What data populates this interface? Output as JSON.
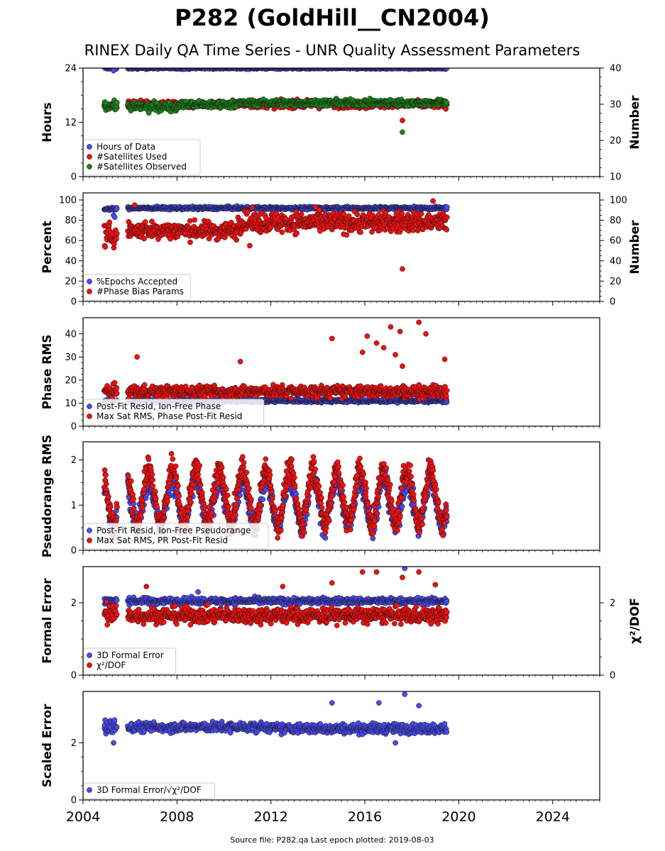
{
  "title": "P282 (GoldHill__CN2004)",
  "subtitle": "RINEX Daily QA Time Series - UNR Quality Assessment Parameters",
  "source_note": "Source file: P282.qa Last epoch plotted: 2019-08-03",
  "colors": {
    "blue": "#4b4bf0",
    "red": "#ee1111",
    "green": "#1a8a1a",
    "edge": "#111111"
  },
  "x_axis": {
    "xlim": [
      2004.0,
      2026.0
    ],
    "ticks": [
      2004,
      2008,
      2012,
      2016,
      2020,
      2024
    ]
  },
  "chart_data": [
    {
      "type": "scatter",
      "ylabel": "Hours",
      "ylabel_right": "Number",
      "ylim": [
        0,
        24
      ],
      "yticks": [
        0,
        12,
        24
      ],
      "ylim_right": [
        10,
        40
      ],
      "yticks_right": [
        10,
        20,
        30,
        40
      ],
      "legend_position": "lower-left",
      "series": [
        {
          "name": "Hours of Data",
          "color": "blue",
          "axis": "left",
          "segments": [
            [
              2004.9,
              2005.45,
              24,
              0.15
            ],
            [
              2005.9,
              2019.5,
              24,
              0.15
            ]
          ],
          "outliers": [
            [
              2005.3,
              23.4
            ]
          ]
        },
        {
          "name": "#Satellites Used",
          "color": "red",
          "axis": "right",
          "segments": [
            [
              2004.9,
              2005.45,
              29.5,
              0.6
            ],
            [
              2005.9,
              2019.5,
              30,
              0.7
            ]
          ],
          "outliers": [
            [
              2017.6,
              25.5
            ],
            [
              2005.3,
              29.9
            ],
            [
              2009.5,
              30.0
            ]
          ]
        },
        {
          "name": "#Satellites Observed",
          "color": "green",
          "axis": "right",
          "segments": [
            [
              2004.9,
              2005.45,
              29.5,
              0.8
            ],
            [
              2005.9,
              2008.0,
              29.3,
              0.8
            ],
            [
              2008.0,
              2010.4,
              29.9,
              0.7
            ],
            [
              2010.4,
              2019.5,
              30.4,
              0.6
            ]
          ],
          "outliers": [
            [
              2017.6,
              22.3
            ],
            [
              2006.8,
              27.6
            ]
          ]
        }
      ]
    },
    {
      "type": "scatter",
      "ylabel": "Percent",
      "ylabel_right": "Number",
      "ylim": [
        0,
        107
      ],
      "yticks": [
        0,
        20,
        40,
        60,
        80,
        100
      ],
      "ylim_right": [
        0,
        107
      ],
      "yticks_right": [
        0,
        20,
        40,
        60,
        80,
        100
      ],
      "legend_position": "lower-left",
      "series": [
        {
          "name": "%Epochs Accepted",
          "color": "blue",
          "axis": "left",
          "segments": [
            [
              2004.9,
              2005.45,
              91,
              1.0
            ],
            [
              2005.9,
              2019.5,
              92,
              1.0
            ]
          ],
          "outliers": [
            [
              2005.3,
              85
            ],
            [
              2005.35,
              83
            ]
          ]
        },
        {
          "name": "#Phase Bias Params",
          "color": "red",
          "axis": "right",
          "segments": [
            [
              2004.9,
              2005.45,
              65,
              8
            ],
            [
              2005.9,
              2010.6,
              70,
              6
            ],
            [
              2010.6,
              2019.5,
              78,
              7
            ]
          ],
          "outliers": [
            [
              2017.6,
              32
            ],
            [
              2018.9,
              99
            ],
            [
              2006.2,
              95
            ],
            [
              2011.1,
              55
            ]
          ]
        }
      ]
    },
    {
      "type": "scatter",
      "ylabel": "Phase RMS",
      "ylim": [
        0,
        47
      ],
      "yticks": [
        0,
        10,
        20,
        30,
        40
      ],
      "legend_position": "lower-left",
      "series": [
        {
          "name": "Post-Fit Resid, Ion-Free Phase",
          "color": "blue",
          "axis": "left",
          "segments": [
            [
              2004.9,
              2005.45,
              11,
              0.5
            ],
            [
              2005.9,
              2019.5,
              11,
              0.5
            ]
          ],
          "outliers": []
        },
        {
          "name": "Max Sat RMS, Phase Post-Fit Resid",
          "color": "red",
          "axis": "left",
          "segments": [
            [
              2004.9,
              2005.45,
              15,
              2
            ],
            [
              2005.9,
              2019.5,
              15,
              1.8
            ]
          ],
          "outliers": [
            [
              2018.3,
              45
            ],
            [
              2017.1,
              43
            ],
            [
              2017.5,
              41
            ],
            [
              2018.6,
              40
            ],
            [
              2016.1,
              39
            ],
            [
              2014.6,
              38
            ],
            [
              2016.5,
              36
            ],
            [
              2016.8,
              34
            ],
            [
              2015.9,
              32
            ],
            [
              2017.3,
              31
            ],
            [
              2006.3,
              30
            ],
            [
              2019.4,
              29
            ],
            [
              2017.6,
              26
            ],
            [
              2010.7,
              28
            ]
          ]
        }
      ]
    },
    {
      "type": "scatter",
      "ylabel": "Pseudorange RMS",
      "ylim": [
        0,
        2.4
      ],
      "yticks": [
        0,
        1,
        2
      ],
      "legend_position": "lower-left",
      "series": [
        {
          "name": "Post-Fit Resid, Ion-Free Pseudorange",
          "color": "blue",
          "axis": "left",
          "seasonal": {
            "start": 2004.9,
            "end": 2019.5,
            "gap": [
              2005.45,
              2005.9
            ],
            "base": 1.05,
            "amp": 0.5,
            "phase": 0.55,
            "spread": 0.18
          }
        },
        {
          "name": "Max Sat RMS, PR Post-Fit Resid",
          "color": "red",
          "axis": "left",
          "seasonal": {
            "start": 2004.9,
            "end": 2019.5,
            "gap": [
              2005.45,
              2005.9
            ],
            "base": 1.2,
            "amp": 0.6,
            "phase": 0.55,
            "spread": 0.2
          }
        }
      ]
    },
    {
      "type": "scatter",
      "ylabel": "Formal Error",
      "ylabel_right": "χ²/DOF",
      "ylim": [
        0,
        3.0
      ],
      "yticks": [
        0,
        2
      ],
      "ylim_right": [
        0,
        3.0
      ],
      "yticks_right": [
        0,
        2
      ],
      "legend_position": "lower-left",
      "series": [
        {
          "name": "3D Formal Error",
          "color": "blue",
          "axis": "left",
          "segments": [
            [
              2004.9,
              2005.45,
              2.05,
              0.08
            ],
            [
              2005.9,
              2019.5,
              2.05,
              0.06
            ]
          ],
          "outliers": [
            [
              2017.7,
              2.95
            ],
            [
              2008.9,
              2.3
            ]
          ]
        },
        {
          "name": "χ²/DOF",
          "color": "red",
          "axis": "right",
          "segments": [
            [
              2004.9,
              2005.45,
              1.7,
              0.25
            ],
            [
              2005.9,
              2019.5,
              1.65,
              0.15
            ]
          ],
          "outliers": [
            [
              2016.5,
              2.85
            ],
            [
              2015.9,
              2.85
            ],
            [
              2018.3,
              2.85
            ],
            [
              2017.6,
              2.7
            ],
            [
              2014.6,
              2.55
            ],
            [
              2006.7,
              2.45
            ],
            [
              2012.5,
              2.45
            ],
            [
              2019.0,
              2.5
            ]
          ]
        }
      ]
    },
    {
      "type": "scatter",
      "ylabel": "Scaled Error",
      "ylim": [
        0,
        3.8
      ],
      "yticks": [
        0,
        2
      ],
      "legend_position": "lower-left",
      "series": [
        {
          "name": "3D Formal Error/√χ²/DOF",
          "color": "blue",
          "axis": "left",
          "segments": [
            [
              2004.9,
              2005.45,
              2.55,
              0.2
            ],
            [
              2005.9,
              2012.0,
              2.55,
              0.12
            ],
            [
              2012.0,
              2019.5,
              2.5,
              0.12
            ]
          ],
          "outliers": [
            [
              2017.7,
              3.7
            ],
            [
              2014.6,
              3.4
            ],
            [
              2016.6,
              3.4
            ],
            [
              2018.3,
              3.3
            ],
            [
              2017.3,
              2.0
            ],
            [
              2005.3,
              2.0
            ]
          ]
        }
      ]
    }
  ]
}
